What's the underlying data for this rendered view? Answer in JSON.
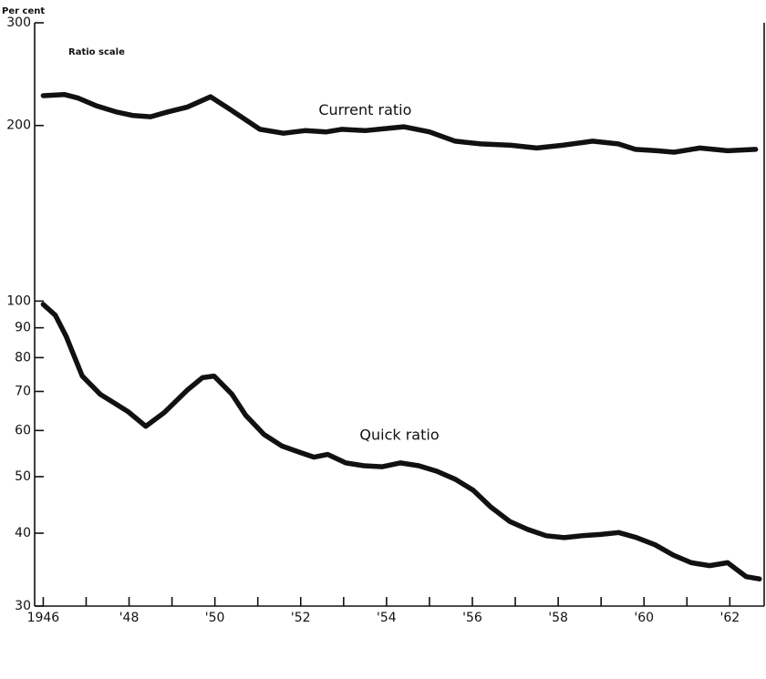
{
  "chart_data": {
    "type": "line",
    "y_unit_label": "Per cent",
    "scale_note": "Ratio scale",
    "log_scale": true,
    "xlim": [
      1945.8,
      1962.8
    ],
    "xticks": [
      {
        "value": 1946,
        "label": "1946"
      },
      {
        "value": 1948,
        "label": "'48"
      },
      {
        "value": 1950,
        "label": "'50"
      },
      {
        "value": 1952,
        "label": "'52"
      },
      {
        "value": 1954,
        "label": "'54"
      },
      {
        "value": 1956,
        "label": "'56"
      },
      {
        "value": 1958,
        "label": "'58"
      },
      {
        "value": 1960,
        "label": "'60"
      },
      {
        "value": 1962,
        "label": "'62"
      }
    ],
    "minor_xticks": [
      1947,
      1949,
      1951,
      1953,
      1955,
      1957,
      1959,
      1961
    ],
    "ylim": [
      30,
      300
    ],
    "yticks": [
      30,
      40,
      50,
      60,
      70,
      80,
      90,
      100,
      200,
      300
    ],
    "series": [
      {
        "name": "Current ratio",
        "color": "#111111",
        "x": [
          1946.0,
          1946.49,
          1946.8,
          1947.25,
          1947.7,
          1948.1,
          1948.5,
          1948.9,
          1949.35,
          1949.9,
          1950.4,
          1951.05,
          1951.6,
          1952.1,
          1952.6,
          1952.95,
          1953.5,
          1954.1,
          1954.4,
          1955.0,
          1955.6,
          1956.2,
          1956.9,
          1957.5,
          1958.1,
          1958.8,
          1959.4,
          1959.8,
          1960.3,
          1960.7,
          1961.3,
          1961.95,
          1962.6
        ],
        "values": [
          225,
          226,
          223,
          216,
          211,
          208,
          207,
          211,
          215,
          224,
          212,
          197,
          194,
          196,
          195,
          197,
          196,
          198,
          199,
          195,
          188,
          186,
          185,
          183,
          185,
          188,
          186,
          182,
          181,
          180,
          183,
          181,
          182
        ]
      },
      {
        "name": "Quick ratio",
        "color": "#111111",
        "x": [
          1946.0,
          1946.28,
          1946.53,
          1946.91,
          1947.33,
          1947.65,
          1947.97,
          1948.39,
          1948.82,
          1949.35,
          1949.71,
          1949.98,
          1950.4,
          1950.72,
          1951.14,
          1951.57,
          1951.99,
          1952.31,
          1952.63,
          1953.05,
          1953.47,
          1953.9,
          1954.32,
          1954.75,
          1955.17,
          1955.6,
          1956.02,
          1956.44,
          1956.87,
          1957.29,
          1957.72,
          1958.14,
          1958.56,
          1958.99,
          1959.41,
          1959.83,
          1960.26,
          1960.68,
          1961.1,
          1961.53,
          1961.95,
          1962.38,
          1962.69
        ],
        "values": [
          98.7,
          94.6,
          87.1,
          74.4,
          69.2,
          66.9,
          64.7,
          61.0,
          64.4,
          70.3,
          73.9,
          74.4,
          69.2,
          63.7,
          59.1,
          56.4,
          55.0,
          54.0,
          54.6,
          52.8,
          52.2,
          52.0,
          52.8,
          52.2,
          51.1,
          49.5,
          47.4,
          44.3,
          41.9,
          40.6,
          39.6,
          39.3,
          39.6,
          39.8,
          40.1,
          39.3,
          38.2,
          36.7,
          35.6,
          35.2,
          35.6,
          33.7,
          33.4
        ]
      }
    ]
  }
}
